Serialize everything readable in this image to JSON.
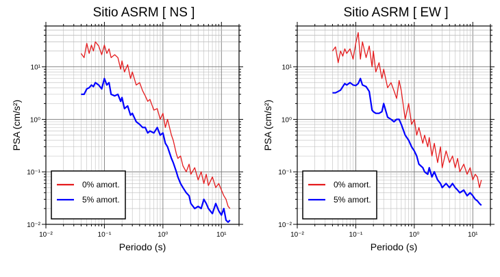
{
  "chart_data": [
    {
      "type": "line",
      "title": "Sitio ASRM [ NS ]",
      "xlabel": "Periodo (s)",
      "ylabel": "PSA (cm/s²)",
      "xscale": "log",
      "yscale": "log",
      "xlim": [
        0.01,
        20
      ],
      "ylim": [
        0.01,
        60
      ],
      "grid": true,
      "legend_position": "bottom-left",
      "x_ticks": [
        "10⁻²",
        "10⁻¹",
        "10⁰",
        "10¹"
      ],
      "y_ticks": [
        "10⁻²",
        "10⁻¹",
        "10⁰",
        "10¹"
      ],
      "series": [
        {
          "name": "0% amort.",
          "color": "#e41a1c",
          "x": [
            0.04,
            0.045,
            0.05,
            0.055,
            0.06,
            0.065,
            0.07,
            0.08,
            0.09,
            0.1,
            0.11,
            0.12,
            0.13,
            0.15,
            0.17,
            0.19,
            0.2,
            0.22,
            0.25,
            0.28,
            0.3,
            0.35,
            0.4,
            0.45,
            0.5,
            0.55,
            0.6,
            0.7,
            0.8,
            0.9,
            1.0,
            1.1,
            1.2,
            1.4,
            1.5,
            1.7,
            1.8,
            2.0,
            2.2,
            2.5,
            2.8,
            3.0,
            3.5,
            4.0,
            4.5,
            5.0,
            5.5,
            6.0,
            7.0,
            8.0,
            9.0,
            10.0,
            11.0,
            12.0,
            13.0,
            14.0
          ],
          "values": [
            18,
            15,
            28,
            18,
            26,
            20,
            30,
            25,
            17,
            26,
            18,
            22,
            15,
            17,
            15,
            9,
            13,
            8,
            11,
            6,
            8,
            4.5,
            5,
            3.5,
            2.8,
            2.2,
            2.4,
            1.5,
            1.6,
            1.0,
            1.3,
            0.7,
            1.0,
            0.5,
            0.4,
            0.22,
            0.18,
            0.2,
            0.13,
            0.1,
            0.14,
            0.09,
            0.12,
            0.07,
            0.1,
            0.06,
            0.09,
            0.055,
            0.08,
            0.05,
            0.06,
            0.045,
            0.035,
            0.03,
            0.022,
            0.02
          ]
        },
        {
          "name": "5% amort.",
          "color": "#0000ff",
          "x": [
            0.04,
            0.045,
            0.05,
            0.055,
            0.06,
            0.065,
            0.07,
            0.08,
            0.09,
            0.1,
            0.11,
            0.12,
            0.13,
            0.15,
            0.17,
            0.19,
            0.2,
            0.22,
            0.25,
            0.28,
            0.3,
            0.35,
            0.4,
            0.45,
            0.5,
            0.55,
            0.6,
            0.7,
            0.8,
            0.9,
            1.0,
            1.1,
            1.2,
            1.4,
            1.5,
            1.7,
            1.8,
            2.0,
            2.2,
            2.5,
            2.8,
            3.0,
            3.5,
            4.0,
            4.5,
            5.0,
            5.5,
            6.0,
            7.0,
            8.0,
            9.0,
            10.0,
            11.0,
            12.0,
            13.0,
            14.0
          ],
          "values": [
            3,
            3,
            3.8,
            4,
            4.5,
            4.2,
            5,
            4.5,
            3.8,
            6,
            4.5,
            5,
            3,
            2.8,
            3,
            2.2,
            2.6,
            1.6,
            1.8,
            1.2,
            1.3,
            0.9,
            0.8,
            0.7,
            0.7,
            0.55,
            0.6,
            0.55,
            0.7,
            0.5,
            0.55,
            0.35,
            0.3,
            0.18,
            0.15,
            0.1,
            0.08,
            0.06,
            0.05,
            0.04,
            0.035,
            0.025,
            0.02,
            0.022,
            0.02,
            0.03,
            0.025,
            0.02,
            0.016,
            0.025,
            0.018,
            0.015,
            0.02,
            0.012,
            0.011,
            0.012
          ]
        }
      ]
    },
    {
      "type": "line",
      "title": "Sitio ASRM [ EW ]",
      "xlabel": "Periodo (s)",
      "ylabel": "PSA (cm/s²)",
      "xscale": "log",
      "yscale": "log",
      "xlim": [
        0.01,
        20
      ],
      "ylim": [
        0.01,
        60
      ],
      "grid": true,
      "legend_position": "bottom-left",
      "x_ticks": [
        "10⁻²",
        "10⁻¹",
        "10⁰",
        "10¹"
      ],
      "y_ticks": [
        "10⁻²",
        "10⁻¹",
        "10⁰",
        "10¹"
      ],
      "series": [
        {
          "name": "0% amort.",
          "color": "#e41a1c",
          "x": [
            0.04,
            0.045,
            0.05,
            0.055,
            0.06,
            0.065,
            0.07,
            0.08,
            0.09,
            0.1,
            0.11,
            0.12,
            0.13,
            0.15,
            0.17,
            0.19,
            0.2,
            0.22,
            0.25,
            0.28,
            0.3,
            0.35,
            0.4,
            0.45,
            0.5,
            0.55,
            0.6,
            0.7,
            0.8,
            0.9,
            1.0,
            1.1,
            1.2,
            1.4,
            1.5,
            1.7,
            1.8,
            2.0,
            2.2,
            2.5,
            2.8,
            3.0,
            3.5,
            4.0,
            4.5,
            5.0,
            5.5,
            6.0,
            7.0,
            8.0,
            9.0,
            10.0,
            11.0,
            12.0,
            13.0,
            14.0
          ],
          "values": [
            20,
            24,
            12,
            20,
            16,
            22,
            18,
            22,
            14,
            28,
            45,
            14,
            30,
            15,
            25,
            10,
            20,
            8,
            12,
            6,
            9,
            4,
            5,
            3.5,
            2.5,
            5.5,
            3.5,
            1.0,
            2.0,
            0.8,
            1.0,
            0.5,
            0.7,
            0.35,
            0.5,
            0.3,
            0.45,
            0.2,
            0.35,
            0.15,
            0.3,
            0.12,
            0.25,
            0.15,
            0.2,
            0.12,
            0.18,
            0.1,
            0.14,
            0.09,
            0.12,
            0.07,
            0.09,
            0.08,
            0.05,
            0.07
          ]
        },
        {
          "name": "5% amort.",
          "color": "#0000ff",
          "x": [
            0.04,
            0.045,
            0.05,
            0.055,
            0.06,
            0.065,
            0.07,
            0.08,
            0.09,
            0.1,
            0.11,
            0.12,
            0.13,
            0.15,
            0.17,
            0.19,
            0.2,
            0.22,
            0.25,
            0.28,
            0.3,
            0.35,
            0.4,
            0.45,
            0.5,
            0.55,
            0.6,
            0.7,
            0.8,
            0.9,
            1.0,
            1.1,
            1.2,
            1.4,
            1.5,
            1.7,
            1.8,
            2.0,
            2.2,
            2.5,
            2.8,
            3.0,
            3.5,
            4.0,
            4.5,
            5.0,
            5.5,
            6.0,
            7.0,
            8.0,
            9.0,
            10.0,
            11.0,
            12.0,
            13.0,
            14.0
          ],
          "values": [
            3.2,
            3.2,
            3.4,
            3.6,
            4.2,
            4.8,
            4.5,
            5,
            4.5,
            4.4,
            4.8,
            6,
            4.5,
            4.2,
            3.4,
            1.5,
            1.4,
            1.3,
            1.3,
            1.4,
            2,
            1.1,
            1.0,
            0.9,
            1.0,
            1.0,
            0.8,
            0.5,
            0.4,
            0.3,
            0.25,
            0.2,
            0.14,
            0.12,
            0.1,
            0.09,
            0.12,
            0.08,
            0.1,
            0.07,
            0.06,
            0.05,
            0.06,
            0.05,
            0.06,
            0.05,
            0.045,
            0.04,
            0.045,
            0.035,
            0.04,
            0.035,
            0.03,
            0.028,
            0.025,
            0.023
          ]
        }
      ]
    }
  ]
}
